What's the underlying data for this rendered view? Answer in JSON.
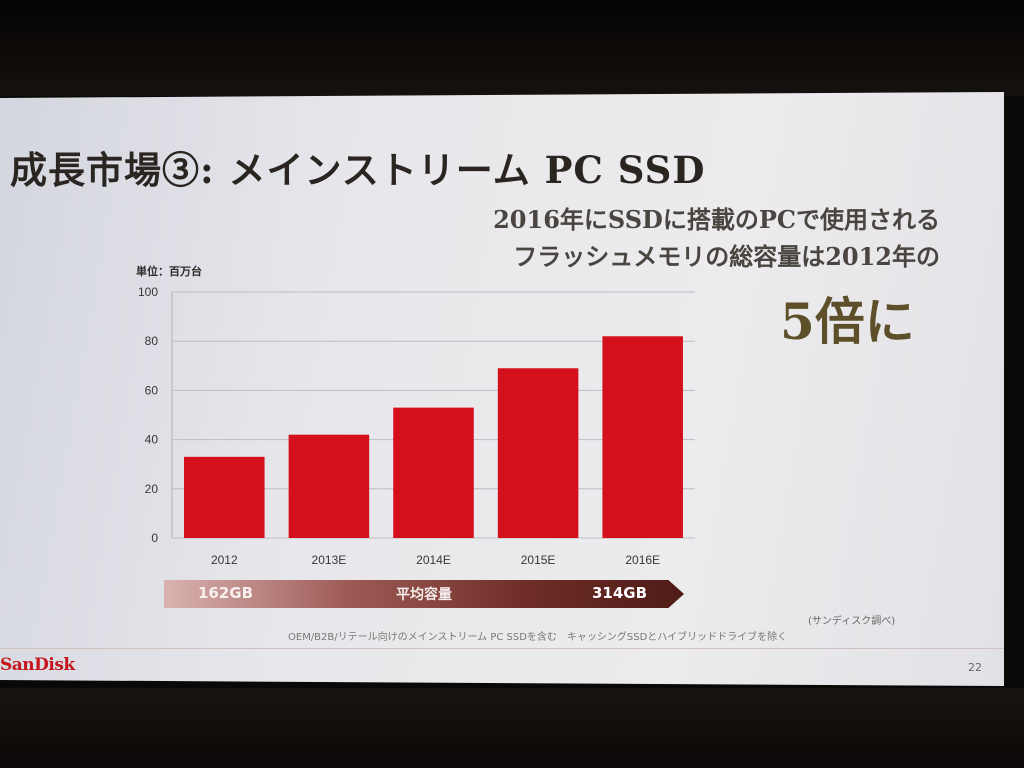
{
  "slide": {
    "title": "成長市場③: メインストリーム PC SSD",
    "subtitle_line1": "2016年にSSDに搭載のPCで使用される",
    "subtitle_line2": "フラッシュメモリの総容量は2012年の",
    "highlight": "5倍に",
    "unit_label": "単位：百万台",
    "avg_capacity": {
      "left": "162GB",
      "label": "平均容量",
      "right": "314GB"
    },
    "source": "(サンディスク調べ)",
    "footnote": "OEM/B2B/リテール向けのメインストリーム PC SSDを含む　キャッシングSSDとハイブリッドドライブを除く",
    "logo": "SanDisk",
    "page_number": "22"
  },
  "chart_data": {
    "type": "bar",
    "categories": [
      "2012",
      "2013E",
      "2014E",
      "2015E",
      "2016E"
    ],
    "values": [
      33,
      42,
      53,
      69,
      82
    ],
    "ylim": [
      0,
      100
    ],
    "yticks": [
      0,
      20,
      40,
      60,
      80,
      100
    ],
    "xlabel": "",
    "ylabel": "",
    "grid": true,
    "bar_color": "#d4101c"
  }
}
